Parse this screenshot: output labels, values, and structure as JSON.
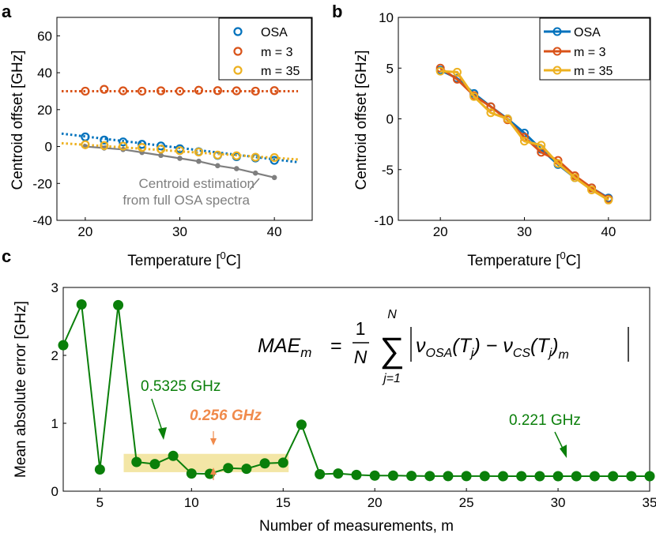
{
  "panels": {
    "a": "a",
    "b": "b",
    "c": "c"
  },
  "chart_data": [
    {
      "id": "a",
      "type": "scatter",
      "xlabel_main": "Temperature ",
      "xlabel_unit": "[",
      "xlabel_sup": "0",
      "xlabel_unit_end": "C]",
      "ylabel": "Centroid offset  [GHz]",
      "xlim": [
        17,
        44
      ],
      "ylim": [
        -40,
        70
      ],
      "xticks": [
        20,
        30,
        40
      ],
      "yticks": [
        -40,
        -20,
        0,
        20,
        40,
        60
      ],
      "x": [
        20,
        22,
        24,
        26,
        28,
        30,
        32,
        34,
        36,
        38,
        40
      ],
      "series": [
        {
          "name": "OSA",
          "color": "#0072BD",
          "values": [
            5.2,
            3.5,
            2.5,
            1.2,
            0.3,
            -1.2,
            -2.8,
            -4.8,
            -5.5,
            -6.2,
            -7.5
          ],
          "fit": {
            "x": [
              17.5,
              42.5
            ],
            "y": [
              7,
              -8.5
            ]
          }
        },
        {
          "name": "m = 3",
          "color": "#D95319",
          "values": [
            30,
            31,
            30.2,
            30,
            30.2,
            30,
            30.5,
            30.3,
            30.2,
            30,
            30.3
          ],
          "fit": {
            "x": [
              17.5,
              42.5
            ],
            "y": [
              30,
              30
            ]
          }
        },
        {
          "name": "m = 35",
          "color": "#EDB120",
          "values": [
            1,
            0.5,
            0.2,
            -0.5,
            -1.4,
            -2.2,
            -3,
            -4.6,
            -5,
            -5.8,
            -6
          ],
          "fit": {
            "x": [
              17.5,
              42.5
            ],
            "y": [
              1.8,
              -7
            ]
          }
        }
      ],
      "gray_series": {
        "name": "Centroid estimation from full OSA spectra",
        "color": "#7f7f7f",
        "values": [
          0,
          -0.8,
          -1.6,
          -3.2,
          -4.8,
          -6.4,
          -8,
          -10.4,
          -12,
          -14.4,
          -16.8
        ]
      },
      "annotation_line1": "Centroid estimation",
      "annotation_line2": "from full OSA spectra",
      "legend_loc": "top-right"
    },
    {
      "id": "b",
      "type": "line",
      "xlabel_main": "Temperature ",
      "xlabel_unit": "[",
      "xlabel_sup": "0",
      "xlabel_unit_end": "C]",
      "ylabel": "Centroid offset  [GHz]",
      "xlim": [
        15,
        45
      ],
      "ylim": [
        -10,
        10
      ],
      "xticks": [
        20,
        30,
        40
      ],
      "yticks": [
        -10,
        -5,
        0,
        5,
        10
      ],
      "x": [
        20,
        22,
        24,
        26,
        28,
        30,
        32,
        34,
        36,
        38,
        40
      ],
      "series": [
        {
          "name": "OSA",
          "color": "#0072BD",
          "values": [
            4.8,
            4,
            2.5,
            1.2,
            0,
            -1.4,
            -3,
            -4.5,
            -5.8,
            -6.8,
            -7.8
          ]
        },
        {
          "name": "m = 3",
          "color": "#D95319",
          "values": [
            5,
            3.9,
            2.3,
            1.2,
            -0.1,
            -1.8,
            -3.3,
            -4.1,
            -5.6,
            -6.8,
            -7.9
          ]
        },
        {
          "name": "m = 35",
          "color": "#EDB120",
          "values": [
            4.7,
            4.6,
            2.2,
            0.6,
            0,
            -2.2,
            -2.6,
            -4.4,
            -5.8,
            -7,
            -8
          ]
        }
      ],
      "legend_loc": "top-right"
    },
    {
      "id": "c",
      "type": "line",
      "xlabel": "Number of measurements, m",
      "ylabel": "Mean absolute error  [GHz]",
      "xlim": [
        3,
        35
      ],
      "ylim": [
        0,
        3
      ],
      "xticks": [
        5,
        10,
        15,
        20,
        25,
        30,
        35
      ],
      "yticks": [
        0,
        1,
        2,
        3
      ],
      "x": [
        3,
        4,
        5,
        6,
        7,
        8,
        9,
        10,
        11,
        12,
        13,
        14,
        15,
        16,
        17,
        18,
        19,
        20,
        21,
        22,
        23,
        24,
        25,
        26,
        27,
        28,
        29,
        30,
        31,
        32,
        33,
        34,
        35
      ],
      "series": [
        {
          "name": "MAE",
          "color": "#0a7f0a",
          "values": [
            2.15,
            2.75,
            0.32,
            2.74,
            0.43,
            0.4,
            0.52,
            0.26,
            0.256,
            0.34,
            0.33,
            0.41,
            0.42,
            0.98,
            0.25,
            0.26,
            0.24,
            0.23,
            0.23,
            0.225,
            0.223,
            0.222,
            0.222,
            0.222,
            0.221,
            0.221,
            0.221,
            0.221,
            0.221,
            0.221,
            0.221,
            0.221,
            0.221
          ]
        }
      ],
      "highlight_range": [
        6.3,
        15.3
      ],
      "annotations": {
        "left": "0.5325 GHz",
        "mid": "0.256 GHz",
        "right": "0.221 GHz"
      },
      "formula": {
        "lhs": "MAE",
        "lhs_sub": "m",
        "eq": "=",
        "frac_num": "1",
        "frac_den": "N",
        "sum_sym": "∑",
        "sum_top": "N",
        "sum_bottom": "j=1",
        "nu": "ν",
        "osa_sub": "OSA",
        "cs_sub": "CS",
        "T": "T",
        "j": "j",
        "m": "m",
        "minus": "−"
      },
      "colors": {
        "annotation_green": "#0a7f0a",
        "annotation_orange": "#f08a4b",
        "highlight": "#f3e6a6"
      }
    }
  ]
}
